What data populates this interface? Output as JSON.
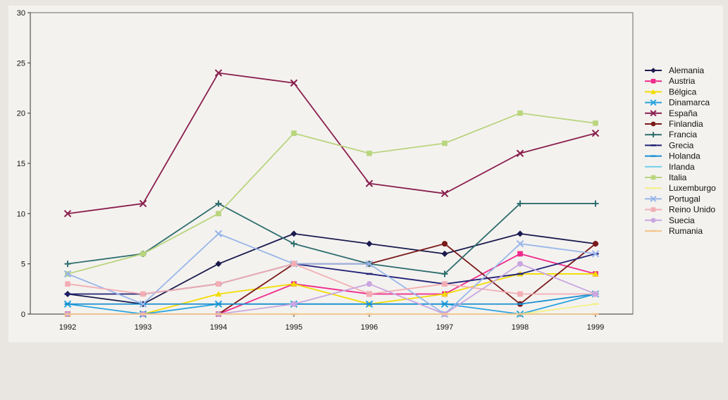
{
  "chart_data": {
    "type": "line",
    "title": "",
    "xlabel": "",
    "ylabel": "",
    "x": [
      "1992",
      "1993",
      "1994",
      "1995",
      "1996",
      "1997",
      "1998",
      "1999"
    ],
    "ylim": [
      0,
      30
    ],
    "yticks": [
      0,
      5,
      10,
      15,
      20,
      25,
      30
    ],
    "grid": false,
    "legend_position": "right",
    "series": [
      {
        "name": "Alemania",
        "color": "#1a1a4e",
        "marker": "diamond",
        "values": [
          2,
          1,
          5,
          8,
          7,
          6,
          8,
          7
        ]
      },
      {
        "name": "Austria",
        "color": "#ee2a8c",
        "marker": "square",
        "values": [
          0,
          0,
          0,
          3,
          2,
          2,
          6,
          4
        ]
      },
      {
        "name": "Bélgica",
        "color": "#f2dc00",
        "marker": "triangle",
        "values": [
          0,
          0,
          2,
          3,
          1,
          2,
          4,
          4
        ]
      },
      {
        "name": "Dinamarca",
        "color": "#2aa4e0",
        "marker": "x",
        "values": [
          1,
          0,
          1,
          1,
          1,
          1,
          0,
          2
        ]
      },
      {
        "name": "España",
        "color": "#8a1f4e",
        "marker": "x",
        "values": [
          10,
          11,
          24,
          23,
          13,
          12,
          16,
          18
        ]
      },
      {
        "name": "Finlandia",
        "color": "#7a1a1a",
        "marker": "circle",
        "values": [
          0,
          0,
          0,
          5,
          5,
          7,
          1,
          7
        ]
      },
      {
        "name": "Francia",
        "color": "#2f6e6e",
        "marker": "plus",
        "values": [
          5,
          6,
          11,
          7,
          5,
          4,
          11,
          11
        ]
      },
      {
        "name": "Grecia",
        "color": "#222277",
        "marker": "dash",
        "values": [
          2,
          2,
          3,
          5,
          4,
          3,
          4,
          6
        ]
      },
      {
        "name": "Holanda",
        "color": "#1b8fd0",
        "marker": "dash",
        "values": [
          1,
          1,
          1,
          1,
          1,
          1,
          1,
          2
        ]
      },
      {
        "name": "Irlanda",
        "color": "#6fd0ec",
        "marker": "none",
        "values": [
          0,
          0,
          0,
          0,
          0,
          0,
          0,
          0
        ]
      },
      {
        "name": "Italia",
        "color": "#b9d57e",
        "marker": "square",
        "values": [
          4,
          6,
          10,
          18,
          16,
          17,
          20,
          19
        ]
      },
      {
        "name": "Luxemburgo",
        "color": "#f3f08a",
        "marker": "dash",
        "values": [
          0,
          0,
          0,
          0,
          0,
          0,
          0,
          1
        ]
      },
      {
        "name": "Portugal",
        "color": "#98b6ea",
        "marker": "x",
        "values": [
          4,
          1,
          8,
          5,
          5,
          0,
          7,
          6
        ]
      },
      {
        "name": "Reino Unido",
        "color": "#f2aeb4",
        "marker": "square",
        "values": [
          3,
          2,
          3,
          5,
          2,
          3,
          2,
          2
        ]
      },
      {
        "name": "Suecia",
        "color": "#c9a6e0",
        "marker": "circle",
        "values": [
          0,
          0,
          0,
          1,
          3,
          0,
          5,
          2
        ]
      },
      {
        "name": "Rumania",
        "color": "#f3c58a",
        "marker": "dash",
        "values": [
          0,
          0,
          0,
          0,
          0,
          0,
          0,
          0
        ]
      }
    ]
  }
}
